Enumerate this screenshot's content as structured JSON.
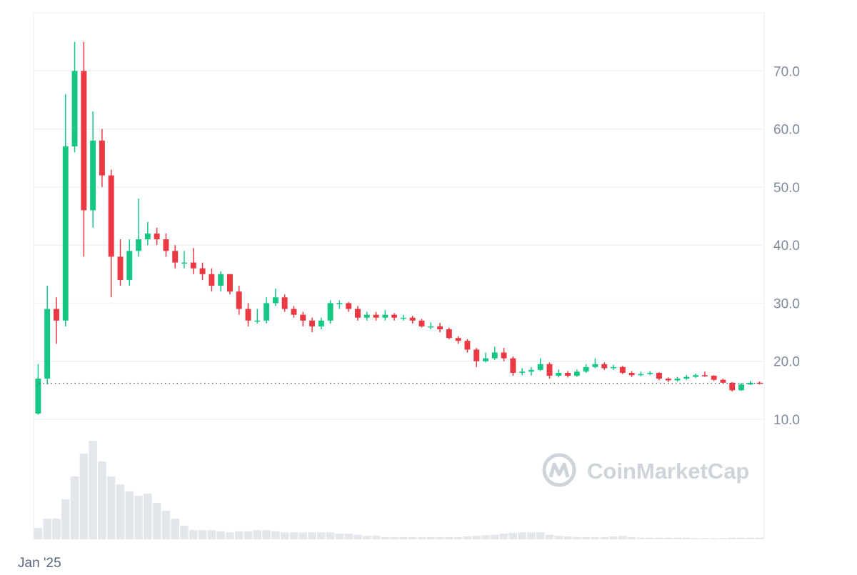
{
  "chart_data": {
    "type": "candlestick",
    "open": [
      11,
      17,
      29,
      27,
      57,
      70,
      46,
      58,
      52,
      38,
      34,
      39,
      41,
      42,
      41,
      39,
      37,
      37,
      36,
      35,
      33,
      35,
      32,
      29,
      27,
      27,
      30,
      31,
      29,
      28,
      27,
      26,
      27,
      30,
      30,
      29,
      27.5,
      28,
      27.5,
      28,
      27.5,
      27.5,
      27,
      26,
      26,
      25.5,
      24,
      23.5,
      22,
      20,
      20.5,
      21.5,
      20.5,
      18,
      18.2,
      18.5,
      19.5,
      17.5,
      18,
      17.5,
      18.2,
      19,
      19.5,
      18.8,
      19,
      18,
      17.6,
      17.8,
      18,
      17,
      16.7,
      17,
      17.3,
      17.6,
      17.5,
      16.8,
      16.3,
      15,
      16,
      16.3
    ],
    "high": [
      19.5,
      33,
      31,
      66,
      75,
      75,
      63,
      60,
      53,
      41,
      41,
      48,
      44,
      43,
      42,
      40,
      39,
      39.5,
      37,
      36,
      35.5,
      35,
      33,
      30,
      29,
      31,
      32.5,
      31.5,
      29.5,
      28.5,
      27.5,
      27.5,
      30.5,
      30.5,
      30.2,
      29.5,
      28.5,
      28.5,
      28.8,
      28.3,
      28,
      27.8,
      27.3,
      26.7,
      26.6,
      25.8,
      24.3,
      23.8,
      22.3,
      21.5,
      22.5,
      22.3,
      20.8,
      18.8,
      19,
      20.5,
      19.8,
      18.6,
      18.3,
      18.6,
      19.5,
      20.5,
      19.8,
      19.4,
      19.2,
      18.3,
      18.2,
      18.3,
      18.1,
      17.2,
      17.3,
      17.6,
      17.9,
      18.2,
      17.6,
      17,
      16.4,
      16.3,
      16.6,
      16.5
    ],
    "low": [
      10.8,
      16,
      23,
      26,
      56,
      38,
      43,
      50,
      31,
      33,
      33,
      38,
      40,
      40,
      38,
      36,
      36,
      35,
      34,
      32,
      32,
      31.5,
      28,
      26,
      26.5,
      26.5,
      29.5,
      28.5,
      27.5,
      26,
      25,
      25.5,
      26.5,
      29,
      28.5,
      27,
      27,
      27,
      27,
      27,
      27,
      26.5,
      25.8,
      25.5,
      25,
      23.8,
      23,
      21.5,
      19,
      19.8,
      20.2,
      20,
      17.5,
      17.6,
      17.5,
      18.3,
      17,
      17.2,
      17.2,
      17.3,
      18,
      18.8,
      18.5,
      18.5,
      17.8,
      17.3,
      17.4,
      17.6,
      16.7,
      16.4,
      16.5,
      16.8,
      17.1,
      17.3,
      16.6,
      16.1,
      14.8,
      14.9,
      15.9,
      16
    ],
    "close": [
      17,
      29,
      27,
      57,
      70,
      46,
      58,
      52,
      38,
      34,
      39,
      41,
      42,
      41,
      39,
      37,
      37,
      36,
      35,
      33,
      35,
      32,
      29,
      27,
      27,
      30,
      31,
      29,
      28,
      27,
      26,
      27,
      30,
      30,
      29,
      27.5,
      28,
      27.5,
      28,
      27.5,
      27.5,
      27,
      26,
      26,
      25.5,
      24,
      23.5,
      22,
      20,
      20.5,
      21.5,
      20.5,
      18,
      18.2,
      18.5,
      19.5,
      17.5,
      18,
      17.5,
      18.2,
      19,
      19.5,
      18.8,
      19,
      18,
      17.6,
      17.8,
      18,
      17,
      16.7,
      17,
      17.3,
      17.6,
      17.5,
      16.8,
      16.3,
      15,
      16,
      16.3,
      16.2
    ],
    "volume": [
      10,
      18,
      18,
      35,
      55,
      75,
      86,
      68,
      55,
      48,
      42,
      38,
      40,
      32,
      25,
      18,
      12,
      8,
      8,
      8,
      7,
      6,
      7,
      7,
      8,
      8,
      7,
      6,
      6,
      6,
      6,
      6,
      6,
      5,
      5,
      4,
      3,
      3,
      2,
      2,
      2,
      2,
      2,
      2,
      2,
      2,
      2,
      2.5,
      3,
      3.5,
      4,
      5,
      5.5,
      6,
      6,
      6,
      4,
      3,
      2.5,
      2,
      2,
      2,
      2,
      2.5,
      3,
      2,
      1.5,
      1.5,
      1.5,
      1.5,
      1.5,
      1.5,
      1,
      1,
      1,
      1,
      1.5,
      1.5,
      1.5,
      1.5
    ],
    "up_color": "#16c784",
    "down_color": "#ea3943",
    "volume_color": "#e3e7ec",
    "xlim": [
      0,
      80
    ],
    "xticks": [
      {
        "value": 0,
        "label": "Jan '25"
      }
    ],
    "ylim": [
      10,
      80
    ],
    "yticks": [
      {
        "value": 10,
        "label": "10.0"
      },
      {
        "value": 20,
        "label": "20.0"
      },
      {
        "value": 30,
        "label": "30.0"
      },
      {
        "value": 40,
        "label": "40.0"
      },
      {
        "value": 50,
        "label": "50.0"
      },
      {
        "value": 60,
        "label": "60.0"
      },
      {
        "value": 70,
        "label": "70.0"
      }
    ],
    "volume_lim": [
      0,
      100
    ],
    "current_price": 16.2,
    "grid": true,
    "watermark": "CoinMarketCap"
  }
}
